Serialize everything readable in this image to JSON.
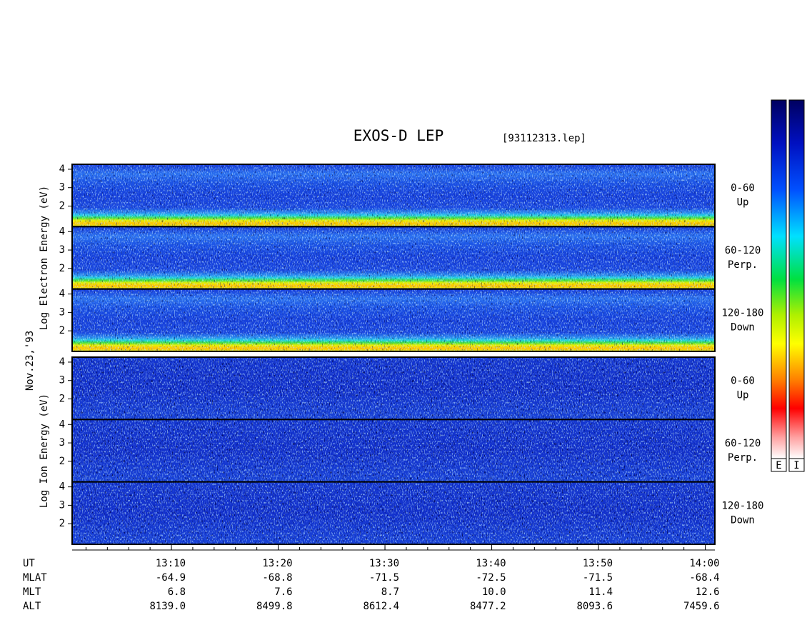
{
  "title": "EXOS-D LEP",
  "file": "[93112313.lep]",
  "date": "Nov.23,'93",
  "colorbar_labels": [
    "E",
    "I"
  ],
  "chart_data": {
    "type": "spectrogram",
    "xlim": [
      780.7,
      840.9
    ],
    "xticks": [
      {
        "value": 790,
        "label": "13:10"
      },
      {
        "value": 800,
        "label": "13:20"
      },
      {
        "value": 810,
        "label": "13:30"
      },
      {
        "value": 820,
        "label": "13:40"
      },
      {
        "value": 830,
        "label": "13:50"
      },
      {
        "value": 840,
        "label": "14:00"
      }
    ],
    "ylim": [
      0.88,
      4.27
    ],
    "yticks": [
      2,
      3,
      4
    ],
    "groups": [
      {
        "axis_label": "Log  Electron  Energy (eV)",
        "kind": "electron",
        "panels": [
          {
            "label": [
              "0-60",
              "Up"
            ]
          },
          {
            "label": [
              "60-120",
              "Perp."
            ]
          },
          {
            "label": [
              "120-180",
              "Down"
            ]
          }
        ]
      },
      {
        "axis_label": "Log  Ion  Energy (eV)",
        "kind": "ion",
        "panels": [
          {
            "label": [
              "0-60",
              "Up"
            ]
          },
          {
            "label": [
              "60-120",
              "Perp."
            ]
          },
          {
            "label": [
              "120-180",
              "Down"
            ]
          }
        ]
      }
    ],
    "rows": [
      {
        "label": "UT"
      },
      {
        "label": "MLAT",
        "values": [
          "-64.9",
          "-68.8",
          "-71.5",
          "-72.5",
          "-71.5",
          "-68.4"
        ]
      },
      {
        "label": "MLT",
        "values": [
          "6.8",
          "7.6",
          "8.7",
          "10.0",
          "11.4",
          "12.6"
        ]
      },
      {
        "label": "ALT",
        "values": [
          "8139.0",
          "8499.8",
          "8612.4",
          "8477.2",
          "8093.6",
          "7459.6"
        ]
      }
    ]
  }
}
